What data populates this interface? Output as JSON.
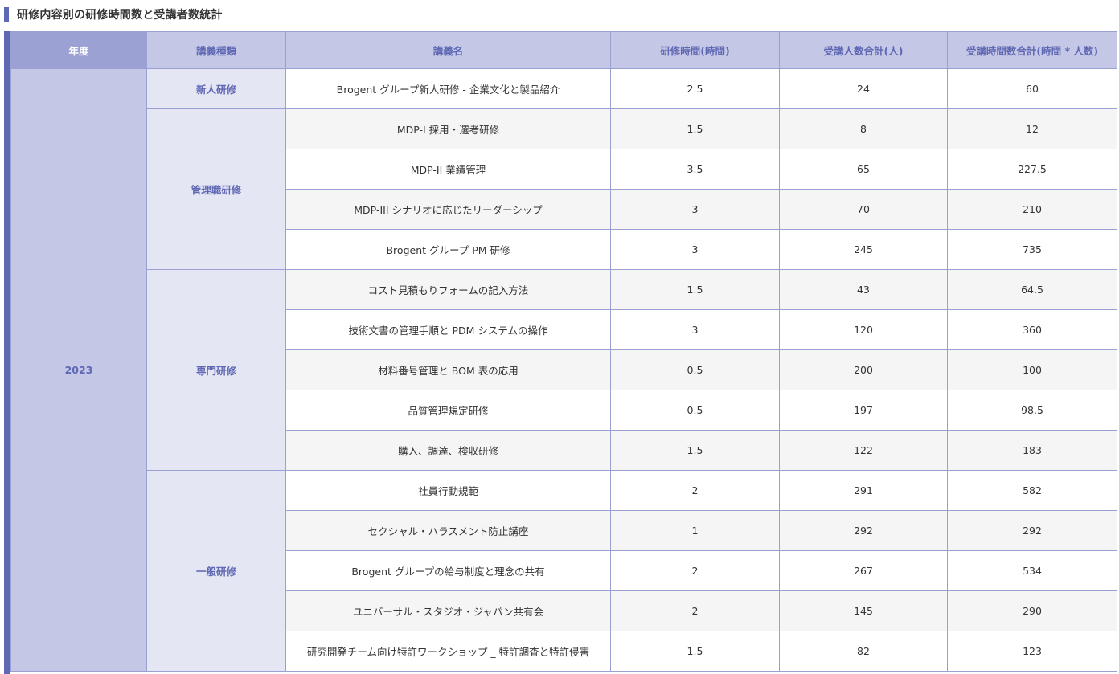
{
  "title": "研修内容別の研修時間数と受講者数統計",
  "headers": {
    "year": "年度",
    "category": "講義種類",
    "course": "講義名",
    "hours": "研修時間(時間)",
    "participants": "受講人数合計(人)",
    "total": "受講時間数合計(時間 * 人数)"
  },
  "year": "2023",
  "categories": [
    "新人研修",
    "管理職研修",
    "専門研修",
    "一般研修"
  ],
  "rows": [
    {
      "name": "Brogent グループ新人研修 - 企業文化と製品紹介",
      "hours": "2.5",
      "participants": "24",
      "total": "60"
    },
    {
      "name": "MDP-I 採用・選考研修",
      "hours": "1.5",
      "participants": "8",
      "total": "12"
    },
    {
      "name": "MDP-II 業績管理",
      "hours": "3.5",
      "participants": "65",
      "total": "227.5"
    },
    {
      "name": "MDP-III シナリオに応じたリーダーシップ",
      "hours": "3",
      "participants": "70",
      "total": "210"
    },
    {
      "name": "Brogent グループ PM 研修",
      "hours": "3",
      "participants": "245",
      "total": "735"
    },
    {
      "name": "コスト見積もりフォームの記入方法",
      "hours": "1.5",
      "participants": "43",
      "total": "64.5"
    },
    {
      "name": "技術文書の管理手順と PDM システムの操作",
      "hours": "3",
      "participants": "120",
      "total": "360"
    },
    {
      "name": "材料番号管理と BOM 表の応用",
      "hours": "0.5",
      "participants": "200",
      "total": "100"
    },
    {
      "name": "品質管理規定研修",
      "hours": "0.5",
      "participants": "197",
      "total": "98.5"
    },
    {
      "name": "購入、調達、検収研修",
      "hours": "1.5",
      "participants": "122",
      "total": "183"
    },
    {
      "name": "社員行動規範",
      "hours": "2",
      "participants": "291",
      "total": "582"
    },
    {
      "name": "セクシャル・ハラスメント防止講座",
      "hours": "1",
      "participants": "292",
      "total": "292"
    },
    {
      "name": "Brogent グループの給与制度と理念の共有",
      "hours": "2",
      "participants": "267",
      "total": "534"
    },
    {
      "name": "ユニバーサル・スタジオ・ジャパン共有会",
      "hours": "2",
      "participants": "145",
      "total": "290"
    },
    {
      "name": "研究開発チーム向け特許ワークショップ _ 特許調査と特許侵害",
      "hours": "1.5",
      "participants": "82",
      "total": "123"
    }
  ]
}
